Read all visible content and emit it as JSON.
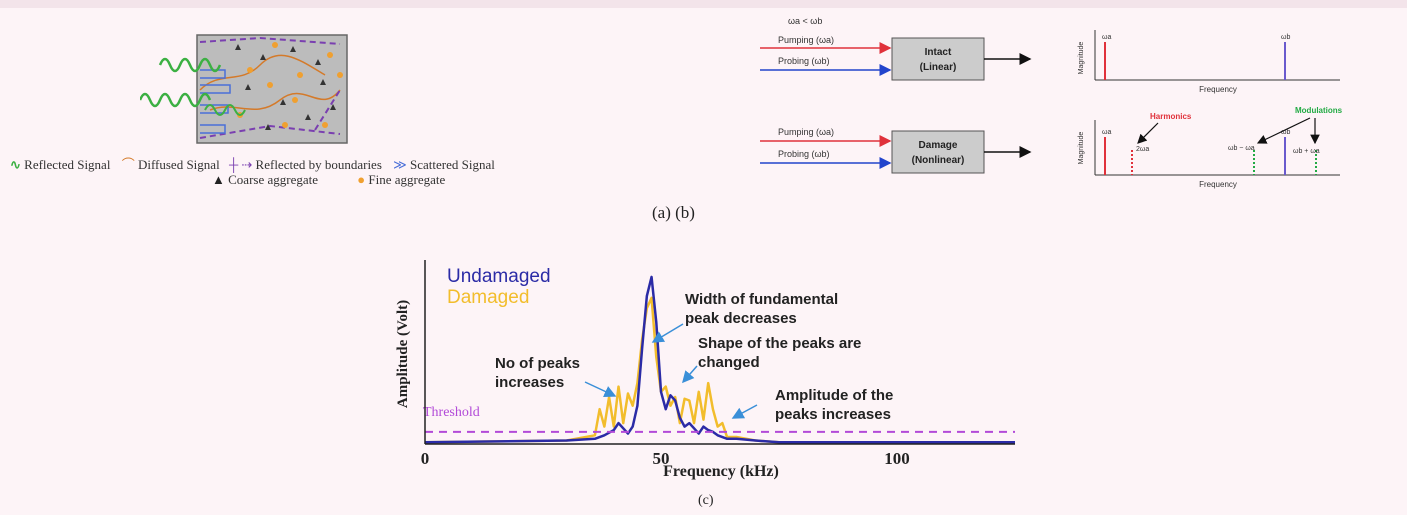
{
  "panel_a": {
    "legend": {
      "reflected": "Reflected Signal",
      "diffused": "Diffused Signal",
      "boundaries": "Reflected by boundaries",
      "scattered": "Scattered Signal",
      "coarse": "Coarse aggregate",
      "fine": "Fine aggregate"
    }
  },
  "panel_b": {
    "condition": "ωa < ωb",
    "pumping": "Pumping (ωa)",
    "probing": "Probing (ωb)",
    "intact_box": [
      "Intact",
      "(Linear)"
    ],
    "damage_box": [
      "Damage",
      "(Nonlinear)"
    ],
    "magnitude": "Magnitude",
    "frequency": "Frequency",
    "wa": "ωa",
    "wb": "ωb",
    "harmonics": "Harmonics",
    "modulations": "Modulations",
    "two_wa": "2ωa",
    "wb_minus_wa": "ωb − ωa",
    "wb_plus_wa": "ωb + ωa",
    "colors": {
      "pump": "#e0313b",
      "probe": "#2244cc",
      "harmonics": "#e0313b",
      "modulations": "#22aa44"
    }
  },
  "caption_ab": "(a)  (b)",
  "caption_c": "(c)",
  "chart_data": {
    "type": "line",
    "xlabel": "Frequency (kHz)",
    "ylabel": "Amplitude (Volt)",
    "xlim": [
      0,
      125
    ],
    "ylim": [
      0,
      1
    ],
    "xticks": [
      0,
      50,
      100
    ],
    "threshold": {
      "label": "Threshold",
      "value": 0.07,
      "color": "#b24ad8"
    },
    "series": [
      {
        "name": "Undamaged",
        "color": "#2b2ba6",
        "x": [
          0,
          30,
          36,
          38,
          40,
          41,
          42,
          43,
          44,
          45,
          46,
          47,
          48,
          49,
          50,
          51,
          52,
          53,
          54,
          55,
          56,
          57,
          58,
          59,
          60,
          61,
          62,
          63,
          64,
          66,
          70,
          75,
          90,
          100,
          125
        ],
        "y": [
          0.01,
          0.02,
          0.03,
          0.05,
          0.08,
          0.12,
          0.09,
          0.06,
          0.1,
          0.22,
          0.55,
          0.85,
          0.96,
          0.7,
          0.3,
          0.2,
          0.28,
          0.25,
          0.15,
          0.1,
          0.12,
          0.09,
          0.06,
          0.1,
          0.08,
          0.07,
          0.05,
          0.04,
          0.03,
          0.03,
          0.02,
          0.01,
          0.01,
          0.01,
          0.01
        ]
      },
      {
        "name": "Damaged",
        "color": "#f2bd2c",
        "x": [
          0,
          30,
          36,
          37,
          38,
          39,
          40,
          41,
          42,
          43,
          44,
          45,
          46,
          47,
          48,
          49,
          50,
          51,
          52,
          53,
          54,
          55,
          56,
          57,
          58,
          59,
          60,
          61,
          62,
          63,
          64,
          66,
          70,
          75,
          90,
          100,
          125
        ],
        "y": [
          0.01,
          0.02,
          0.05,
          0.2,
          0.1,
          0.27,
          0.1,
          0.33,
          0.12,
          0.29,
          0.22,
          0.35,
          0.6,
          0.78,
          0.84,
          0.5,
          0.3,
          0.33,
          0.22,
          0.27,
          0.12,
          0.26,
          0.25,
          0.12,
          0.3,
          0.14,
          0.35,
          0.2,
          0.1,
          0.12,
          0.04,
          0.04,
          0.02,
          0.01,
          0.01,
          0.01,
          0.01
        ]
      }
    ],
    "annotations": [
      "Width of fundamental peak decreases",
      "No of peaks increases",
      "Shape of the peaks are changed",
      "Amplitude of the peaks increases"
    ]
  }
}
